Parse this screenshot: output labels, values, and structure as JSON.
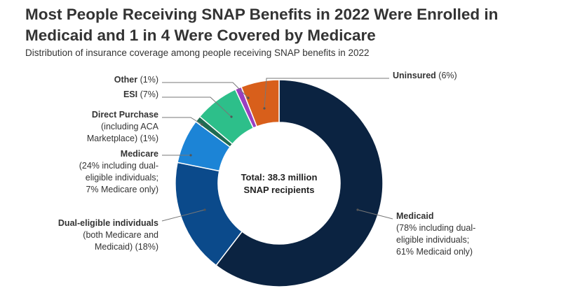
{
  "title": "Most People Receiving SNAP Benefits in 2022 Were Enrolled in Medicaid and 1 in 4 Were Covered by Medicare",
  "title_lines": [
    "Most People Receiving SNAP Benefits in 2022 Were Enrolled in",
    "Medicaid and 1 in 4 Were Covered by Medicare"
  ],
  "subtitle": "Distribution of insurance coverage among people receiving SNAP benefits in 2022",
  "chart_data": {
    "type": "pie",
    "variant": "donut",
    "title": "Most People Receiving SNAP Benefits in 2022 Were Enrolled in Medicaid and 1 in 4 Were Covered by Medicare",
    "subtitle": "Distribution of insurance coverage among people receiving SNAP benefits in 2022",
    "center_label": [
      "Total: 38.3 million",
      "SNAP recipients"
    ],
    "slices": [
      {
        "name": "Medicaid",
        "value": 61,
        "color": "#0b2341",
        "label": [
          "Medicaid",
          "(78% including dual-",
          "eligible individuals;",
          "61% Medicaid only)"
        ]
      },
      {
        "name": "Dual-eligible individuals",
        "value": 18,
        "color": "#0b4a8b",
        "label": [
          "Dual-eligible individuals",
          "(both Medicare and",
          "Medicaid) (18%)"
        ]
      },
      {
        "name": "Medicare",
        "value": 7,
        "color": "#1c84d6",
        "label": [
          "Medicare",
          "(24% including dual-",
          "eligible individuals;",
          "7% Medicare only)"
        ]
      },
      {
        "name": "Direct Purchase",
        "value": 1,
        "color": "#1f6b52",
        "label": [
          "Direct Purchase",
          "(including ACA",
          "Marketplace) (1%)"
        ]
      },
      {
        "name": "ESI",
        "value": 7,
        "color": "#2dbf8a",
        "label": [
          "ESI (7%)"
        ]
      },
      {
        "name": "Other",
        "value": 1,
        "color": "#9a3fc0",
        "label": [
          "Other (1%)"
        ]
      },
      {
        "name": "Uninsured",
        "value": 6,
        "color": "#d85f1b",
        "label": [
          "Uninsured (6%)"
        ]
      }
    ]
  }
}
